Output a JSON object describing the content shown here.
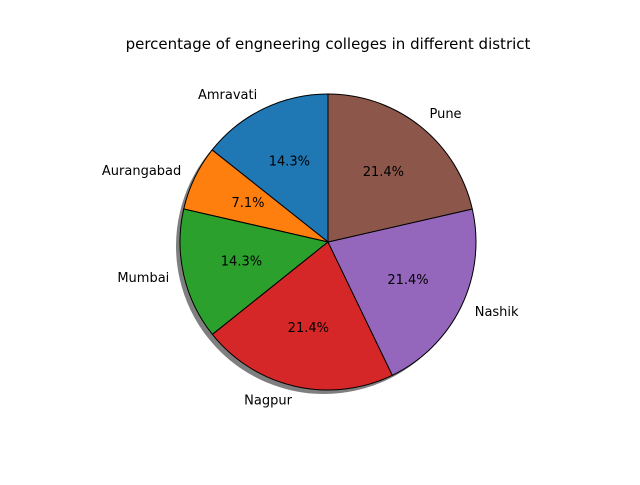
{
  "chart_data": {
    "type": "pie",
    "title": "percentage of engneering colleges in different district",
    "categories": [
      "Amravati",
      "Aurangabad",
      "Mumbai",
      "Nagpur",
      "Nashik",
      "Pune"
    ],
    "values": [
      14.3,
      7.1,
      14.3,
      21.4,
      21.4,
      21.4
    ],
    "percent_labels": [
      "14.3%",
      "7.1%",
      "14.3%",
      "21.4%",
      "21.4%",
      "21.4%"
    ],
    "colors": [
      "#1f77b4",
      "#ff7f0e",
      "#2ca02c",
      "#d62728",
      "#9467bd",
      "#8c564b"
    ],
    "start_angle_deg": 90,
    "direction": "counterclockwise",
    "shadow": true,
    "edge_color": "#000000"
  }
}
